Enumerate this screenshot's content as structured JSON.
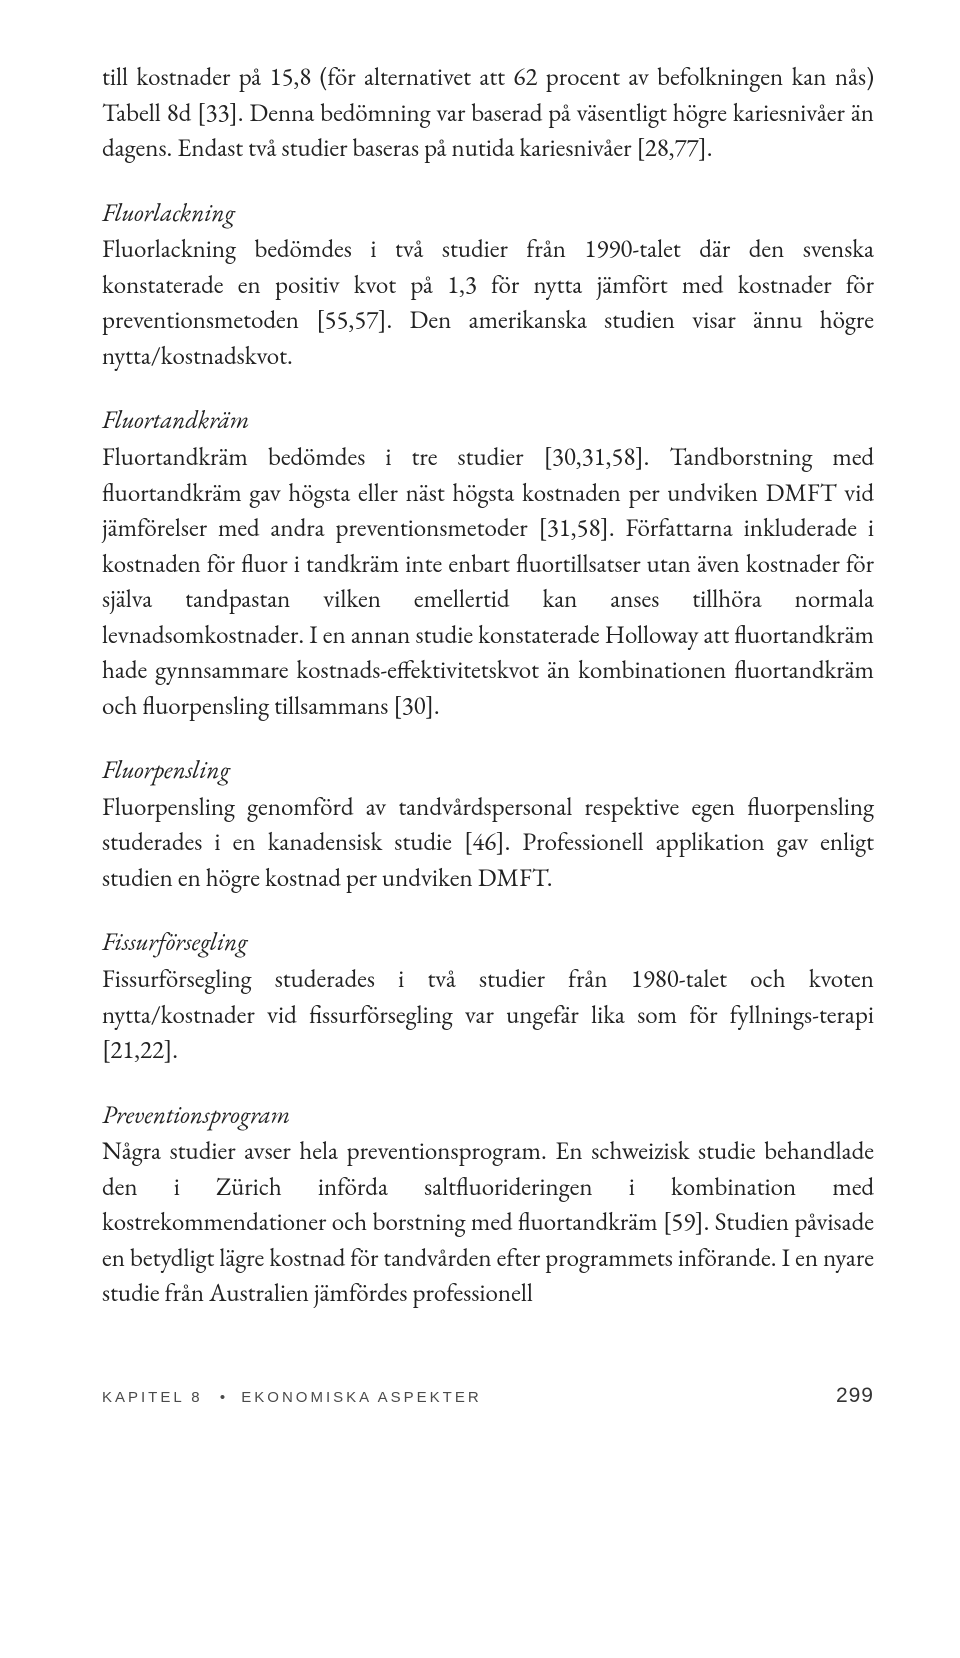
{
  "intro_paragraph": "till kostnader på 15,8 (för alternativet att 62 procent av befolkningen kan nås) Tabell 8d [33]. Denna bedömning var baserad på väsentligt högre kariesnivåer än dagens. Endast två studier baseras på nutida kariesnivåer [28,77].",
  "sections": [
    {
      "heading": "Fluorlackning",
      "body": "Fluorlackning bedömdes i två studier från 1990-talet där den svenska konstaterade en positiv kvot på 1,3 för nytta jämfört med kostnader för preventionsmetoden [55,57]. Den amerikanska studien visar ännu högre nytta/kostnadskvot."
    },
    {
      "heading": "Fluortandkräm",
      "body": "Fluortandkräm bedömdes i tre studier [30,31,58]. Tandborstning med fluortandkräm gav högsta eller näst högsta kostnaden per undviken DMFT vid jämförelser med andra preventionsmetoder [31,58]. Författarna inkluderade i kostnaden för fluor i tandkräm inte enbart fluortillsatser utan även kostnader för själva tandpastan vilken emellertid kan anses tillhöra normala levnadsomkostnader. I en annan studie konstaterade Holloway att fluortandkräm hade gynnsammare kostnads-effektivitets­kvot än kombinationen fluortandkräm och fluorpensling tillsammans [30]."
    },
    {
      "heading": "Fluorpensling",
      "body": "Fluorpensling genomförd av tandvårdspersonal respektive egen fluor­pensling studerades i en kanadensisk studie [46]. Professionell applika­tion gav enligt studien en högre kostnad per undviken DMFT."
    },
    {
      "heading": "Fissurförsegling",
      "body": "Fissurförsegling studerades i två studier från 1980-talet och kvoten nytta/kostnader vid fissurförsegling var ungefär lika som för fyllnings-terapi [21,22]."
    },
    {
      "heading": "Preventionsprogram",
      "body": "Några studier avser hela preventionsprogram. En schweizisk studie behandlade den i Zürich införda saltfluorideringen i kombination med kostrekommendationer och borstning med fluortandkräm [59]. Studien påvisade en betydligt lägre kostnad för tandvården efter programmets införande. I en nyare studie från Australien jämfördes professionell"
    }
  ],
  "footer": {
    "chapter_label": "KAPITEL 8",
    "chapter_title": "EKONOMISKA ASPEKTER",
    "page_number": "299"
  }
}
